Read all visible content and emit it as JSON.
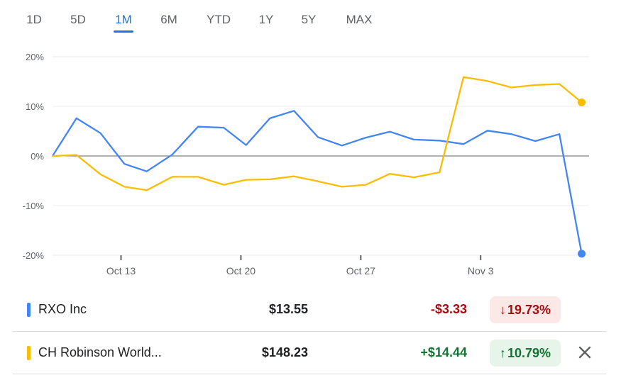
{
  "tabs": [
    {
      "label": "1D"
    },
    {
      "label": "5D"
    },
    {
      "label": "1M"
    },
    {
      "label": "6M"
    },
    {
      "label": "YTD"
    },
    {
      "label": "1Y"
    },
    {
      "label": "5Y"
    },
    {
      "label": "MAX"
    }
  ],
  "active_tab": "1M",
  "colors": {
    "rxo": "#4285f4",
    "chrw": "#fbbc04",
    "negative_text": "#a50e0e",
    "negative_bg": "#fce8e6",
    "positive_text": "#137333",
    "positive_bg": "#e6f4ea",
    "accent": "#1a73e8"
  },
  "chart_data": {
    "type": "line",
    "y_ticks": [
      "20%",
      "10%",
      "0%",
      "-10%",
      "-20%"
    ],
    "y_tick_values": [
      20,
      10,
      0,
      -10,
      -20
    ],
    "ylim": [
      -20,
      20
    ],
    "x_tick_labels": [
      "Oct 13",
      "Oct 20",
      "Oct 27",
      "Nov 3"
    ],
    "x_tick_positions": [
      5,
      12,
      19,
      26
    ],
    "xlim": [
      1,
      32
    ],
    "grid": true,
    "series": [
      {
        "name": "RXO Inc",
        "color": "#4285f4",
        "points": [
          [
            1,
            0.0
          ],
          [
            2.4,
            7.6
          ],
          [
            3.8,
            4.6
          ],
          [
            5.2,
            -1.6
          ],
          [
            6.5,
            -3.1
          ],
          [
            8,
            0.3
          ],
          [
            9.5,
            5.9
          ],
          [
            11,
            5.7
          ],
          [
            12.3,
            2.2
          ],
          [
            13.7,
            7.6
          ],
          [
            15.1,
            9.1
          ],
          [
            16.5,
            3.8
          ],
          [
            17.9,
            2.1
          ],
          [
            19.3,
            3.7
          ],
          [
            20.7,
            4.9
          ],
          [
            22.1,
            3.3
          ],
          [
            23.6,
            3.1
          ],
          [
            25,
            2.4
          ],
          [
            26.4,
            5.1
          ],
          [
            27.8,
            4.4
          ],
          [
            29.2,
            3.0
          ],
          [
            30.6,
            4.4
          ],
          [
            31.9,
            -19.7
          ]
        ]
      },
      {
        "name": "CH Robinson Worldwide",
        "color": "#fbbc04",
        "points": [
          [
            1,
            0.0
          ],
          [
            2.4,
            0.2
          ],
          [
            3.8,
            -3.7
          ],
          [
            5.2,
            -6.2
          ],
          [
            6.5,
            -6.9
          ],
          [
            8,
            -4.2
          ],
          [
            9.5,
            -4.2
          ],
          [
            11,
            -5.8
          ],
          [
            12.3,
            -4.8
          ],
          [
            13.7,
            -4.7
          ],
          [
            15.1,
            -4.1
          ],
          [
            16.5,
            -5.1
          ],
          [
            17.9,
            -6.2
          ],
          [
            19.3,
            -5.8
          ],
          [
            20.7,
            -3.6
          ],
          [
            22.1,
            -4.3
          ],
          [
            23.6,
            -3.3
          ],
          [
            25,
            15.9
          ],
          [
            26.4,
            15.1
          ],
          [
            27.8,
            13.8
          ],
          [
            29.2,
            14.3
          ],
          [
            30.6,
            14.5
          ],
          [
            31.9,
            10.8
          ]
        ]
      }
    ]
  },
  "table": {
    "rows": [
      {
        "name": "RXO Inc",
        "price": "$13.55",
        "change": "-$3.33",
        "percent": "19.73%",
        "arrow": "↓",
        "direction": "down"
      },
      {
        "name": "CH Robinson World...",
        "price": "$148.23",
        "change": "+$14.44",
        "percent": "10.79%",
        "arrow": "↑",
        "direction": "up",
        "removable": true
      }
    ]
  }
}
